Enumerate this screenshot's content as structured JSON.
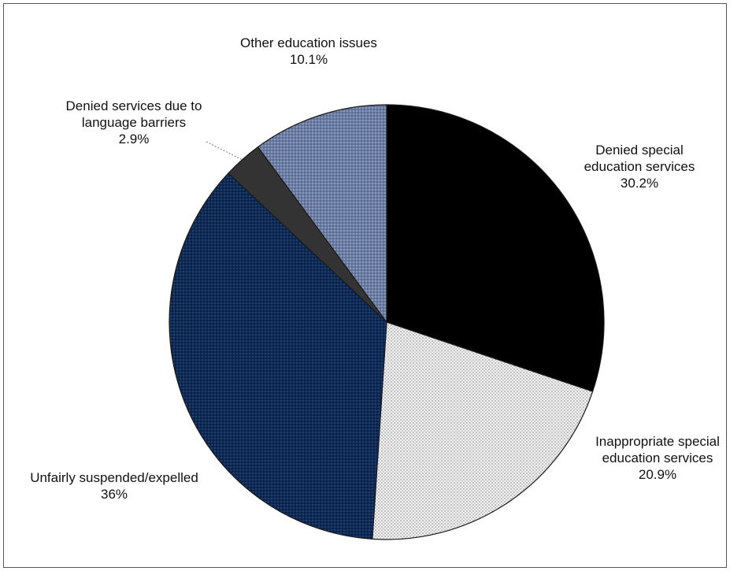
{
  "chart_data": {
    "type": "pie",
    "title": "",
    "slices": [
      {
        "id": "denied-special",
        "label_lines": [
          "Denied special",
          "education services"
        ],
        "value_text": "30.2%",
        "value": 30.2,
        "color": "#000000",
        "pattern": "solid"
      },
      {
        "id": "inappropriate-special",
        "label_lines": [
          "Inappropriate special",
          "education services"
        ],
        "value_text": "20.9%",
        "value": 20.9,
        "color": "#e8e8e8",
        "pattern": "dots"
      },
      {
        "id": "unfairly-suspended",
        "label_lines": [
          "Unfairly suspended/expelled"
        ],
        "value_text": "36%",
        "value": 36,
        "color": "#0f2f5c",
        "pattern": "dots-dark"
      },
      {
        "id": "denied-language",
        "label_lines": [
          "Denied services due to",
          "language barriers"
        ],
        "value_text": "2.9%",
        "value": 2.9,
        "color": "#333333",
        "pattern": "solid"
      },
      {
        "id": "other-education",
        "label_lines": [
          "Other education issues"
        ],
        "value_text": "10.1%",
        "value": 10.1,
        "color": "#6f80a6",
        "pattern": "dots-blue"
      }
    ],
    "legend": "none"
  }
}
